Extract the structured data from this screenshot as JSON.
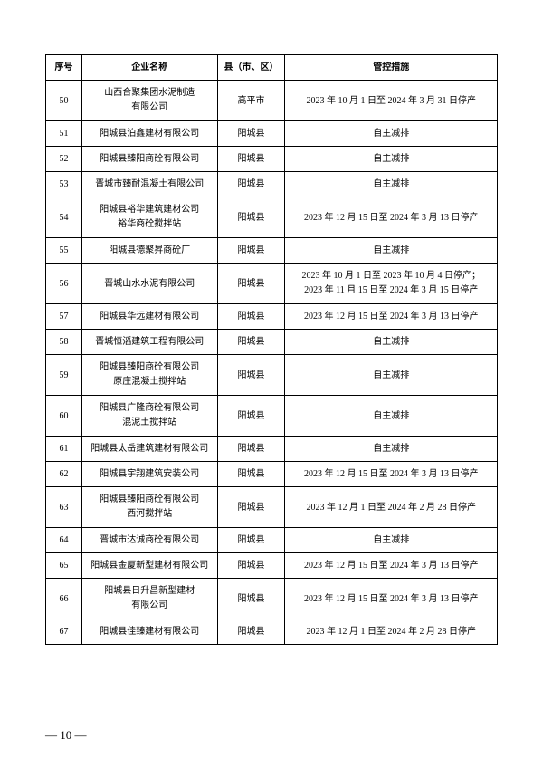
{
  "headers": {
    "seq": "序号",
    "name": "企业名称",
    "region": "县（市、区）",
    "measure": "管控措施"
  },
  "rows": [
    {
      "seq": "50",
      "name": "山西合聚集团水泥制造\n有限公司",
      "region": "高平市",
      "measure": "2023 年 10 月 1 日至 2024 年 3 月 31 日停产"
    },
    {
      "seq": "51",
      "name": "阳城县泊鑫建材有限公司",
      "region": "阳城县",
      "measure": "自主减排"
    },
    {
      "seq": "52",
      "name": "阳城县臻阳商砼有限公司",
      "region": "阳城县",
      "measure": "自主减排"
    },
    {
      "seq": "53",
      "name": "晋城市臻耐混凝土有限公司",
      "region": "阳城县",
      "measure": "自主减排"
    },
    {
      "seq": "54",
      "name": "阳城县裕华建筑建材公司\n裕华商砼搅拌站",
      "region": "阳城县",
      "measure": "2023 年 12 月 15 日至 2024 年 3 月 13 日停产"
    },
    {
      "seq": "55",
      "name": "阳城县德聚昇商砼厂",
      "region": "阳城县",
      "measure": "自主减排"
    },
    {
      "seq": "56",
      "name": "晋城山水水泥有限公司",
      "region": "阳城县",
      "measure": "2023 年 10 月 1 日至 2023 年 10 月 4 日停产；\n2023 年 11 月 15 日至 2024 年 3 月 15 日停产"
    },
    {
      "seq": "57",
      "name": "阳城县华远建材有限公司",
      "region": "阳城县",
      "measure": "2023 年 12 月 15 日至 2024 年 3 月 13 日停产"
    },
    {
      "seq": "58",
      "name": "晋城恒滔建筑工程有限公司",
      "region": "阳城县",
      "measure": "自主减排"
    },
    {
      "seq": "59",
      "name": "阳城县臻阳商砼有限公司\n原庄混凝土搅拌站",
      "region": "阳城县",
      "measure": "自主减排"
    },
    {
      "seq": "60",
      "name": "阳城县广隆商砼有限公司\n混泥土搅拌站",
      "region": "阳城县",
      "measure": "自主减排"
    },
    {
      "seq": "61",
      "name": "阳城县太岳建筑建材有限公司",
      "region": "阳城县",
      "measure": "自主减排"
    },
    {
      "seq": "62",
      "name": "阳城县宇翔建筑安装公司",
      "region": "阳城县",
      "measure": "2023 年 12 月 15 日至 2024 年 3 月 13 日停产"
    },
    {
      "seq": "63",
      "name": "阳城县臻阳商砼有限公司\n西河搅拌站",
      "region": "阳城县",
      "measure": "2023 年 12 月 1 日至 2024 年 2 月 28 日停产"
    },
    {
      "seq": "64",
      "name": "晋城市达诚商砼有限公司",
      "region": "阳城县",
      "measure": "自主减排"
    },
    {
      "seq": "65",
      "name": "阳城县金厦新型建材有限公司",
      "region": "阳城县",
      "measure": "2023 年 12 月 15 日至 2024 年 3 月 13 日停产"
    },
    {
      "seq": "66",
      "name": "阳城县日升昌新型建材\n有限公司",
      "region": "阳城县",
      "measure": "2023 年 12 月 15 日至 2024 年 3 月 13 日停产"
    },
    {
      "seq": "67",
      "name": "阳城县佳臻建材有限公司",
      "region": "阳城县",
      "measure": "2023 年 12 月 1 日至 2024 年 2 月 28 日停产"
    }
  ],
  "pageNumber": "— 10 —"
}
